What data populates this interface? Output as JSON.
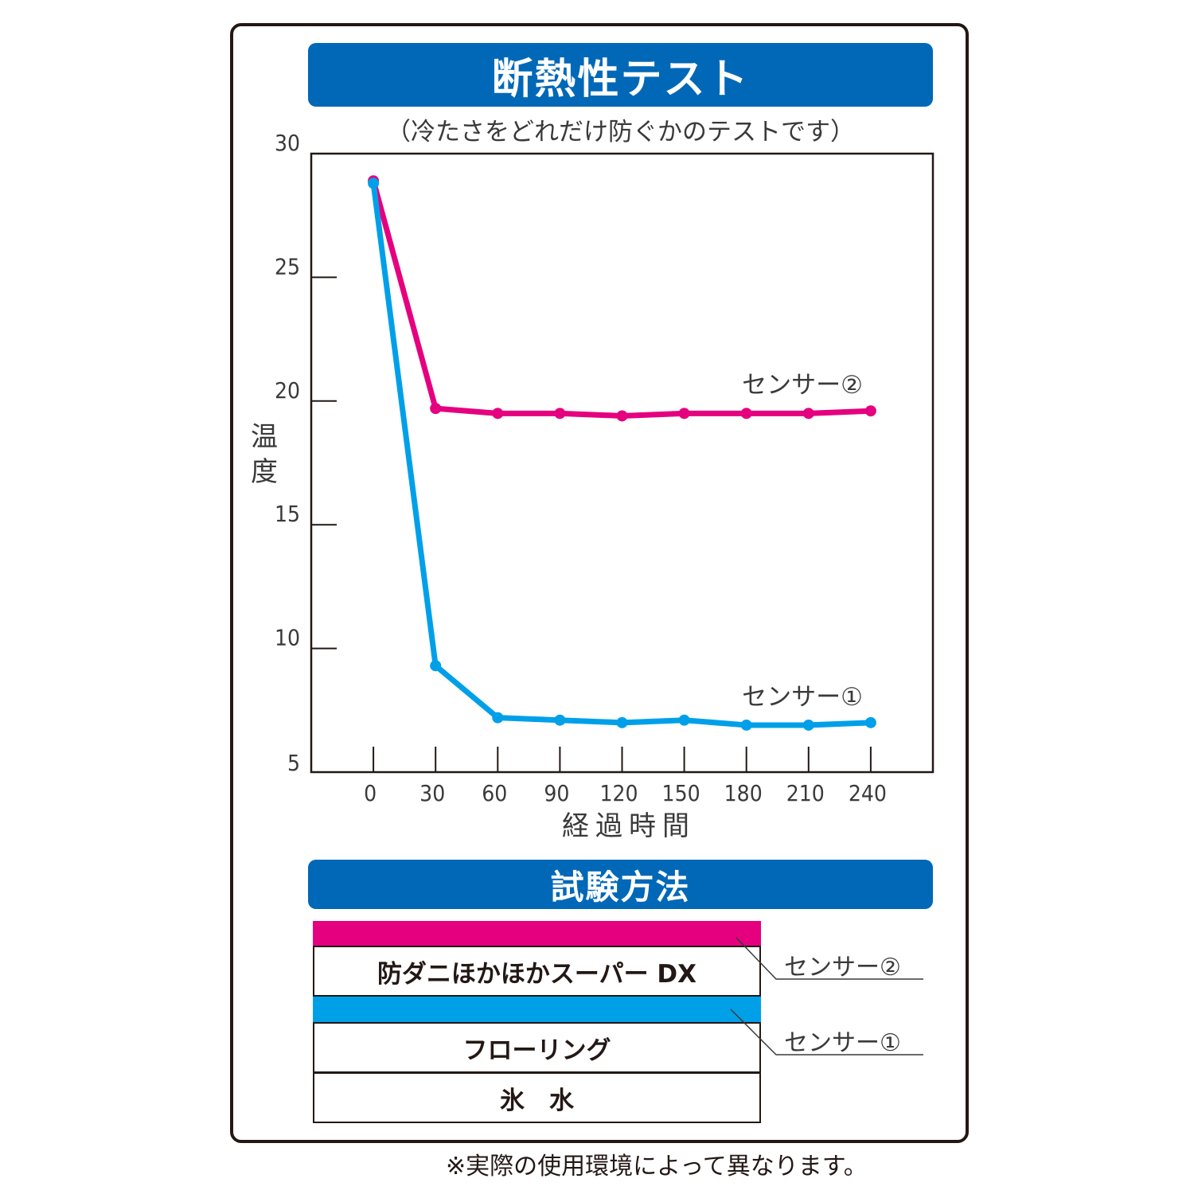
{
  "header": {
    "title": "断熱性テスト",
    "subtitle": "（冷たさをどれだけ防ぐかのテストです）"
  },
  "method": {
    "title": "試験方法",
    "layers": [
      "防ダニほかほかスーパー DX",
      "フローリング",
      "氷　水"
    ],
    "sensor2": "センサー②",
    "sensor1": "センサー①"
  },
  "footnote": "※実際の使用環境によって異なります。",
  "colors": {
    "banner": "#0068b7",
    "sensor2": "#e4007f",
    "sensor1": "#00a0e9"
  },
  "chart_data": {
    "type": "line",
    "xlabel": "経過時間",
    "ylabel": "温度",
    "x": [
      0,
      30,
      60,
      90,
      120,
      150,
      180,
      210,
      240
    ],
    "x_ticks": [
      "0",
      "30",
      "60",
      "90",
      "120",
      "150",
      "180",
      "210",
      "240"
    ],
    "y_ticks": [
      "5",
      "10",
      "15",
      "20",
      "25",
      "30"
    ],
    "ylim": [
      5,
      30
    ],
    "xlim": [
      -30,
      270
    ],
    "grid": false,
    "series": [
      {
        "name": "センサー②",
        "color": "#e4007f",
        "values": [
          28.9,
          19.7,
          19.5,
          19.5,
          19.4,
          19.5,
          19.5,
          19.5,
          19.6
        ]
      },
      {
        "name": "センサー①",
        "color": "#00a0e9",
        "values": [
          28.8,
          9.3,
          7.2,
          7.1,
          7.0,
          7.1,
          6.9,
          6.9,
          7.0
        ]
      }
    ]
  }
}
